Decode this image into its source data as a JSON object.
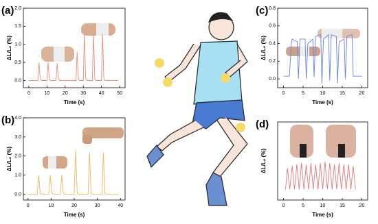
{
  "chart_data": [
    {
      "type": "line",
      "panel": "(a)",
      "xlabel": "Time (s)",
      "ylabel": "ΔL/L₀ (%)",
      "color": "#e8907a",
      "xlim": [
        -3,
        53
      ],
      "xticks": [
        0,
        10,
        20,
        30,
        40,
        50
      ],
      "ylim": [
        -0.2,
        2.0
      ],
      "yticks": [
        {
          "value": 0,
          "label": "0.0"
        },
        {
          "value": 0.5,
          "label": "0.5"
        },
        {
          "value": 1,
          "label": "1.0"
        },
        {
          "value": 1.5,
          "label": "1.5"
        },
        {
          "value": 2,
          "label": "2.0"
        }
      ],
      "x": [
        0,
        5,
        5.6,
        6.3,
        7,
        10,
        10.6,
        11.3,
        12,
        15,
        15.6,
        16.3,
        17,
        26,
        26.6,
        27.3,
        28,
        30,
        30.6,
        31.3,
        32,
        35,
        35.6,
        36.3,
        37,
        40,
        40.6,
        41.3,
        42,
        49
      ],
      "values": [
        0,
        0,
        0.5,
        0.05,
        0,
        0,
        0.5,
        0.05,
        0,
        0,
        0.48,
        0.05,
        0,
        0,
        0.8,
        0.05,
        0,
        0,
        1.3,
        0.05,
        0,
        0,
        1.3,
        0.05,
        0,
        0,
        1.3,
        0.05,
        0,
        0
      ]
    },
    {
      "type": "line",
      "panel": "(b)",
      "xlabel": "Time (s)",
      "ylabel": "ΔL/L₀ (%)",
      "color": "#e8b860",
      "xlim": [
        -2,
        42
      ],
      "xticks": [
        0,
        10,
        20,
        30,
        40
      ],
      "ylim": [
        -0.3,
        4.0
      ],
      "yticks": [
        {
          "value": 0,
          "label": "0.0"
        },
        {
          "value": 1,
          "label": "1.0"
        },
        {
          "value": 2,
          "label": "2.0"
        },
        {
          "value": 3,
          "label": "3.0"
        },
        {
          "value": 4,
          "label": "4.0"
        }
      ],
      "x": [
        0,
        4,
        4.6,
        5.3,
        6,
        9,
        9.6,
        10.3,
        11,
        14,
        14.6,
        15.3,
        16,
        20,
        20.6,
        21.3,
        22,
        26,
        26.6,
        27.3,
        28,
        32,
        32.6,
        33.3,
        34,
        39
      ],
      "values": [
        0,
        0,
        1.0,
        0.05,
        0,
        0,
        1.0,
        0.05,
        0,
        0,
        1.0,
        0.05,
        0,
        0,
        2.3,
        0.05,
        0,
        0,
        2.2,
        0.05,
        0,
        0,
        2.2,
        0.05,
        0,
        0
      ]
    },
    {
      "type": "line",
      "panel": "(c)",
      "xlabel": "Time (s)",
      "ylabel": "ΔL/L₀ (%)",
      "color": "#6a7fe0",
      "xlim": [
        -1.5,
        21.5
      ],
      "xticks": [
        0,
        5,
        10,
        15,
        20
      ],
      "ylim": [
        -0.1,
        0.8
      ],
      "yticks": [
        {
          "value": 0,
          "label": "0.0"
        },
        {
          "value": 0.2,
          "label": "0.2"
        },
        {
          "value": 0.4,
          "label": "0.4"
        },
        {
          "value": 0.6,
          "label": "0.6"
        },
        {
          "value": 0.8,
          "label": "0.8"
        }
      ],
      "x": [
        0,
        1.5,
        2,
        2.2,
        3.5,
        3.8,
        4.2,
        5.5,
        5.8,
        6.2,
        7.5,
        7.8,
        8.2,
        9.5,
        9.8,
        10.2,
        11.5,
        11.8,
        12.2,
        13.5,
        13.8,
        14.2,
        15.5,
        15.8,
        16.2,
        17.5,
        17.8,
        18.5,
        20
      ],
      "values": [
        0.03,
        0.03,
        0.4,
        0.45,
        0.42,
        0.0,
        0.45,
        0.45,
        0.0,
        0.4,
        0.45,
        0.02,
        0.48,
        0.5,
        -0.05,
        0.45,
        0.5,
        -0.02,
        0.5,
        0.48,
        -0.05,
        0.42,
        0.45,
        0.0,
        0.48,
        0.5,
        0.03,
        0.03,
        0.03
      ]
    },
    {
      "type": "line",
      "panel": "(d)",
      "xlabel": "Time (s)",
      "ylabel": "ΔL/L₀ (%)",
      "color": "#e07a7a",
      "xlim": [
        -1.5,
        21.5
      ],
      "xticks": [
        0,
        5,
        10,
        15,
        20
      ],
      "ylim": [
        -0.1,
        1.0
      ],
      "x": [
        0.5,
        1,
        1.6,
        2.2,
        2.8,
        3.4,
        4,
        4.6,
        5.2,
        5.8,
        6.4,
        7,
        7.6,
        8.2,
        8.8,
        9.4,
        10,
        10.6,
        11.2,
        11.8,
        12.4,
        13,
        13.6,
        14.2,
        14.8,
        15.4,
        16,
        16.6,
        17.2,
        17.8,
        18.4
      ],
      "values": [
        0.05,
        0.35,
        0.05,
        0.38,
        0.05,
        0.4,
        0.05,
        0.42,
        0.05,
        0.4,
        0.05,
        0.42,
        0.05,
        0.4,
        0.05,
        0.42,
        0.05,
        0.44,
        0.05,
        0.42,
        0.05,
        0.4,
        0.05,
        0.42,
        0.05,
        0.4,
        0.05,
        0.4,
        0.05,
        0.38,
        0.05
      ]
    }
  ]
}
